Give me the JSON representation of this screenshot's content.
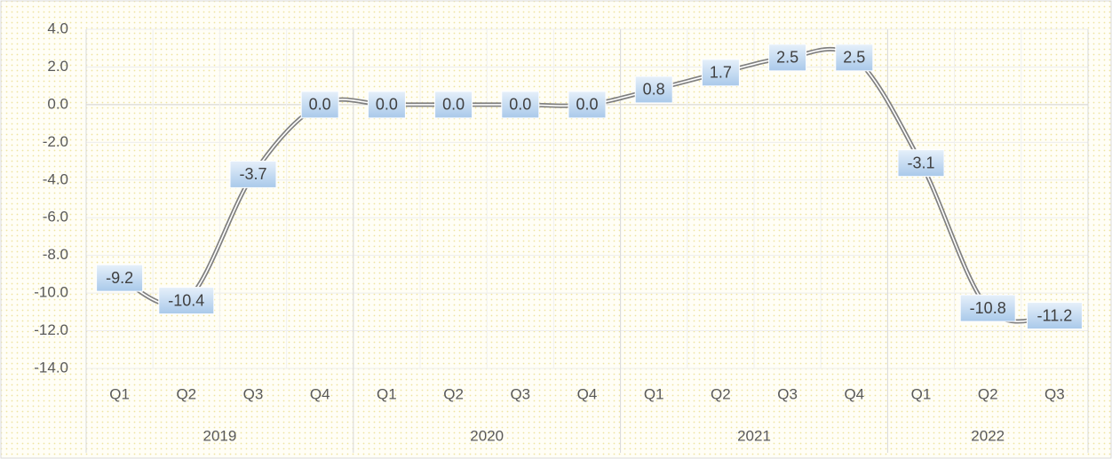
{
  "chart_data": {
    "type": "line",
    "groups": [
      {
        "name": "2019",
        "categories": [
          "Q1",
          "Q2",
          "Q3",
          "Q4"
        ]
      },
      {
        "name": "2020",
        "categories": [
          "Q1",
          "Q2",
          "Q3",
          "Q4"
        ]
      },
      {
        "name": "2021",
        "categories": [
          "Q1",
          "Q2",
          "Q3",
          "Q4"
        ]
      },
      {
        "name": "2022",
        "categories": [
          "Q1",
          "Q2",
          "Q3"
        ]
      }
    ],
    "values": [
      -9.2,
      -10.4,
      -3.7,
      0,
      0,
      0,
      0,
      0,
      0.8,
      1.7,
      2.5,
      2.5,
      -3.1,
      -10.8,
      -11.2
    ],
    "value_labels": [
      "-9.2",
      "-10.4",
      "-3.7",
      "0.0",
      "0.0",
      "0.0",
      "0.0",
      "0.0",
      "0.8",
      "1.7",
      "2.5",
      "2.5",
      "-3.1",
      "-10.8",
      "-11.2"
    ],
    "color": "#808080",
    "ylim": [
      -14,
      4
    ],
    "yticks": [
      {
        "value": 4,
        "label": "4.0"
      },
      {
        "value": 2,
        "label": "2.0"
      },
      {
        "value": 0,
        "label": "0.0"
      },
      {
        "value": -2,
        "label": "-2.0"
      },
      {
        "value": -4,
        "label": "-4.0"
      },
      {
        "value": -6,
        "label": "-6.0"
      },
      {
        "value": -8,
        "label": "-8.0"
      },
      {
        "value": -10,
        "label": "-10.0"
      },
      {
        "value": -12,
        "label": "-12.0"
      },
      {
        "value": -14,
        "label": "-14.0"
      }
    ],
    "grid": true
  }
}
